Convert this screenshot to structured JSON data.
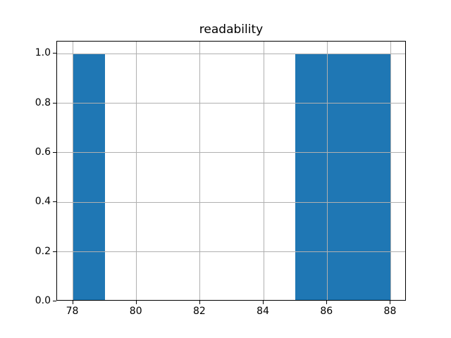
{
  "chart_data": {
    "type": "bar",
    "subtype": "histogram",
    "title": "readability",
    "xlabel": "",
    "ylabel": "",
    "bin_edges": [
      78,
      79,
      80,
      81,
      82,
      83,
      84,
      85,
      86,
      87,
      88
    ],
    "counts": [
      1,
      0,
      0,
      0,
      0,
      0,
      0,
      1,
      1,
      1
    ],
    "xlim": [
      77.5,
      88.5
    ],
    "ylim": [
      0,
      1.05
    ],
    "xticks": [
      78,
      80,
      82,
      84,
      86,
      88
    ],
    "xtick_labels": [
      "78",
      "80",
      "82",
      "84",
      "86",
      "88"
    ],
    "yticks": [
      0,
      0.2,
      0.4,
      0.6,
      0.8,
      1.0
    ],
    "ytick_labels": [
      "0.0",
      "0.2",
      "0.4",
      "0.6",
      "0.8",
      "1.0"
    ],
    "grid": true,
    "grid_above_bars": true,
    "legend": null,
    "colors": {
      "bar": "#1f77b4",
      "grid": "#b0b0b0",
      "spine": "#000000",
      "text": "#000000",
      "background": "#ffffff"
    }
  }
}
